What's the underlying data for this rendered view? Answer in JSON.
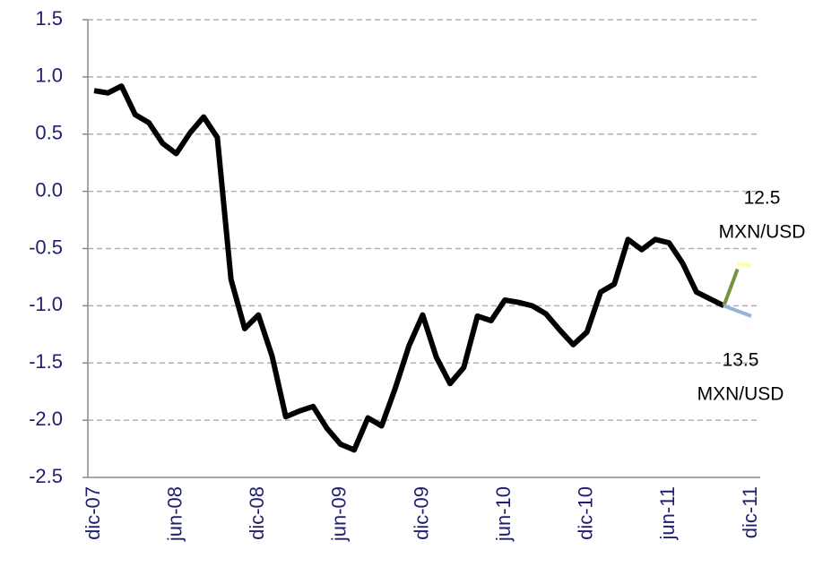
{
  "chart_data": {
    "type": "line",
    "categories": [
      "dic-07",
      null,
      null,
      null,
      null,
      null,
      "jun-08",
      null,
      null,
      null,
      null,
      null,
      "dic-08",
      null,
      null,
      null,
      null,
      null,
      "jun-09",
      null,
      null,
      null,
      null,
      null,
      "dic-09",
      null,
      null,
      null,
      null,
      null,
      "jun-10",
      null,
      null,
      null,
      null,
      null,
      "dic-10",
      null,
      null,
      null,
      null,
      null,
      "jun-11",
      null,
      null,
      null,
      null,
      null,
      "dic-11"
    ],
    "series": [
      {
        "color": "#000000",
        "values": [
          0.88,
          0.86,
          0.92,
          0.67,
          0.6,
          0.42,
          0.33,
          0.51,
          0.65,
          0.47,
          -0.77,
          -1.2,
          -1.08,
          -1.44,
          -1.97,
          -1.92,
          -1.88,
          -2.07,
          -2.21,
          -2.26,
          -1.98,
          -2.05,
          -1.72,
          -1.35,
          -1.08,
          -1.45,
          -1.68,
          -1.54,
          -1.09,
          -1.13,
          -0.95,
          -0.97,
          -1.0,
          -1.07,
          -1.21,
          -1.34,
          -1.23,
          -0.88,
          -0.81,
          -0.42,
          -0.51,
          -0.42,
          -0.45,
          -0.63,
          -0.88,
          -0.94,
          -1.0,
          null,
          null
        ]
      },
      {
        "color": "#77933c",
        "values": [
          null,
          null,
          null,
          null,
          null,
          null,
          null,
          null,
          null,
          null,
          null,
          null,
          null,
          null,
          null,
          null,
          null,
          null,
          null,
          null,
          null,
          null,
          null,
          null,
          null,
          null,
          null,
          null,
          null,
          null,
          null,
          null,
          null,
          null,
          null,
          null,
          null,
          null,
          null,
          null,
          null,
          null,
          null,
          null,
          null,
          null,
          -1.0,
          -0.68,
          null
        ]
      },
      {
        "color": "#ffff99",
        "values": [
          null,
          null,
          null,
          null,
          null,
          null,
          null,
          null,
          null,
          null,
          null,
          null,
          null,
          null,
          null,
          null,
          null,
          null,
          null,
          null,
          null,
          null,
          null,
          null,
          null,
          null,
          null,
          null,
          null,
          null,
          null,
          null,
          null,
          null,
          null,
          null,
          null,
          null,
          null,
          null,
          null,
          null,
          null,
          null,
          null,
          null,
          null,
          -0.63,
          -0.65
        ]
      },
      {
        "color": "#95b3d7",
        "values": [
          null,
          null,
          null,
          null,
          null,
          null,
          null,
          null,
          null,
          null,
          null,
          null,
          null,
          null,
          null,
          null,
          null,
          null,
          null,
          null,
          null,
          null,
          null,
          null,
          null,
          null,
          null,
          null,
          null,
          null,
          null,
          null,
          null,
          null,
          null,
          null,
          null,
          null,
          null,
          null,
          null,
          null,
          null,
          null,
          null,
          null,
          -1.0,
          null,
          -1.09
        ]
      }
    ],
    "ylim": [
      -2.5,
      1.5
    ],
    "yticks": [
      {
        "value": -2.5,
        "label": "-2.5"
      },
      {
        "value": -2.0,
        "label": "-2.0"
      },
      {
        "value": -1.5,
        "label": "-1.5"
      },
      {
        "value": -1.0,
        "label": "-1.0"
      },
      {
        "value": -0.5,
        "label": "-0.5"
      },
      {
        "value": 0,
        "label": "0.0"
      },
      {
        "value": 0.5,
        "label": "0.5"
      },
      {
        "value": 1.0,
        "label": "1.0"
      },
      {
        "value": 1.5,
        "label": "1.5"
      }
    ],
    "grid": true,
    "annotations": [
      {
        "lines": [
          "12.5",
          "MXN/USD"
        ]
      },
      {
        "lines": [
          "13.5",
          "MXN/USD"
        ]
      }
    ]
  }
}
